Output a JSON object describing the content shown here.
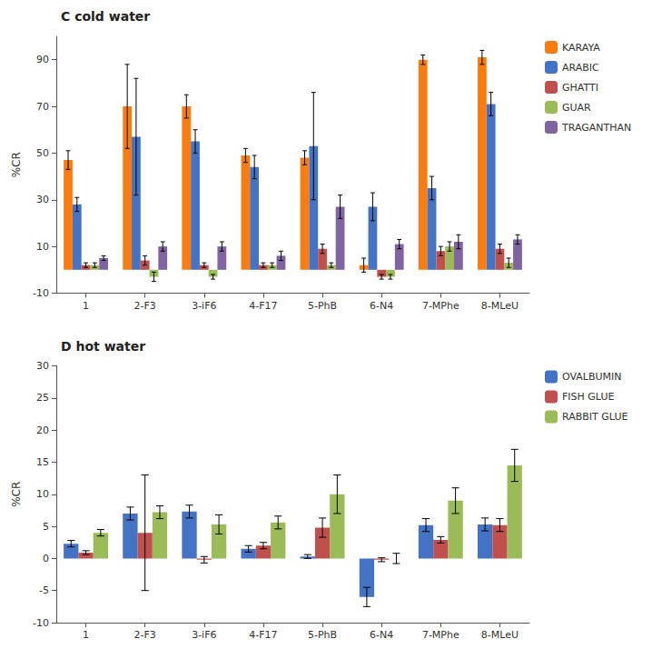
{
  "chart_data": [
    {
      "type": "bar",
      "title": "C cold water",
      "categories": [
        "1",
        "2-F3",
        "3-iF6",
        "4-F17",
        "5-PhB",
        "6-N4",
        "7-MPhe",
        "8-MLeU"
      ],
      "series": [
        {
          "name": "KARAYA",
          "color": "#F97C11",
          "values": [
            47,
            70,
            70,
            49,
            48,
            2,
            90,
            91
          ],
          "errors": [
            4,
            18,
            5,
            3,
            3,
            3,
            2,
            3
          ]
        },
        {
          "name": "ARABIC",
          "color": "#4472C4",
          "values": [
            28,
            57,
            55,
            44,
            53,
            27,
            35,
            71
          ],
          "errors": [
            3,
            25,
            5,
            5,
            23,
            6,
            5,
            5
          ]
        },
        {
          "name": "GHATTI",
          "color": "#C0504D",
          "values": [
            2,
            4,
            2,
            2,
            9,
            -3,
            8,
            9
          ],
          "errors": [
            1,
            2,
            1,
            1,
            2,
            1,
            2,
            2
          ]
        },
        {
          "name": "GUAR",
          "color": "#9BBB59",
          "values": [
            2,
            -3,
            -3,
            2,
            2,
            -3,
            10,
            3
          ],
          "errors": [
            1,
            2,
            1,
            1,
            1,
            1,
            2,
            2
          ]
        },
        {
          "name": "TRAGANTHAN",
          "color": "#8064A2",
          "values": [
            5,
            10,
            10,
            6,
            27,
            11,
            12,
            13
          ],
          "errors": [
            1,
            2,
            2,
            2,
            5,
            2,
            3,
            2
          ]
        }
      ],
      "ylabel": "%CR",
      "ylim": [
        -10,
        100
      ],
      "yticks": [
        -10,
        10,
        30,
        50,
        70,
        90
      ],
      "grid": false,
      "legend": "upper right"
    },
    {
      "type": "bar",
      "title": "D hot water",
      "categories": [
        "1",
        "2-F3",
        "3-iF6",
        "4-F17",
        "5-PhB",
        "6-N4",
        "7-MPhe",
        "8-MLeU"
      ],
      "series": [
        {
          "name": "OVALBUMIN",
          "color": "#4472C4",
          "values": [
            2.3,
            7.0,
            7.3,
            1.5,
            0.3,
            -6.0,
            5.2,
            5.3
          ],
          "errors": [
            0.5,
            1.0,
            1.0,
            0.5,
            0.3,
            1.5,
            1.0,
            1.0
          ]
        },
        {
          "name": "FISH GLUE",
          "color": "#C0504D",
          "values": [
            0.9,
            4.0,
            -0.2,
            2.0,
            4.8,
            -0.2,
            2.9,
            5.2
          ],
          "errors": [
            0.3,
            9.0,
            0.5,
            0.5,
            1.5,
            0.3,
            0.5,
            1.0
          ]
        },
        {
          "name": "RABBIT GLUE",
          "color": "#9BBB59",
          "values": [
            4.0,
            7.2,
            5.3,
            5.6,
            10.0,
            0.0,
            9.0,
            14.5
          ],
          "errors": [
            0.5,
            1.0,
            1.5,
            1.0,
            3.0,
            0.8,
            2.0,
            2.5
          ]
        }
      ],
      "ylabel": "%CR",
      "ylim": [
        -10,
        30
      ],
      "yticks": [
        -10,
        -5,
        0,
        5,
        10,
        15,
        20,
        25,
        30
      ],
      "grid": false,
      "legend": "upper right"
    }
  ]
}
